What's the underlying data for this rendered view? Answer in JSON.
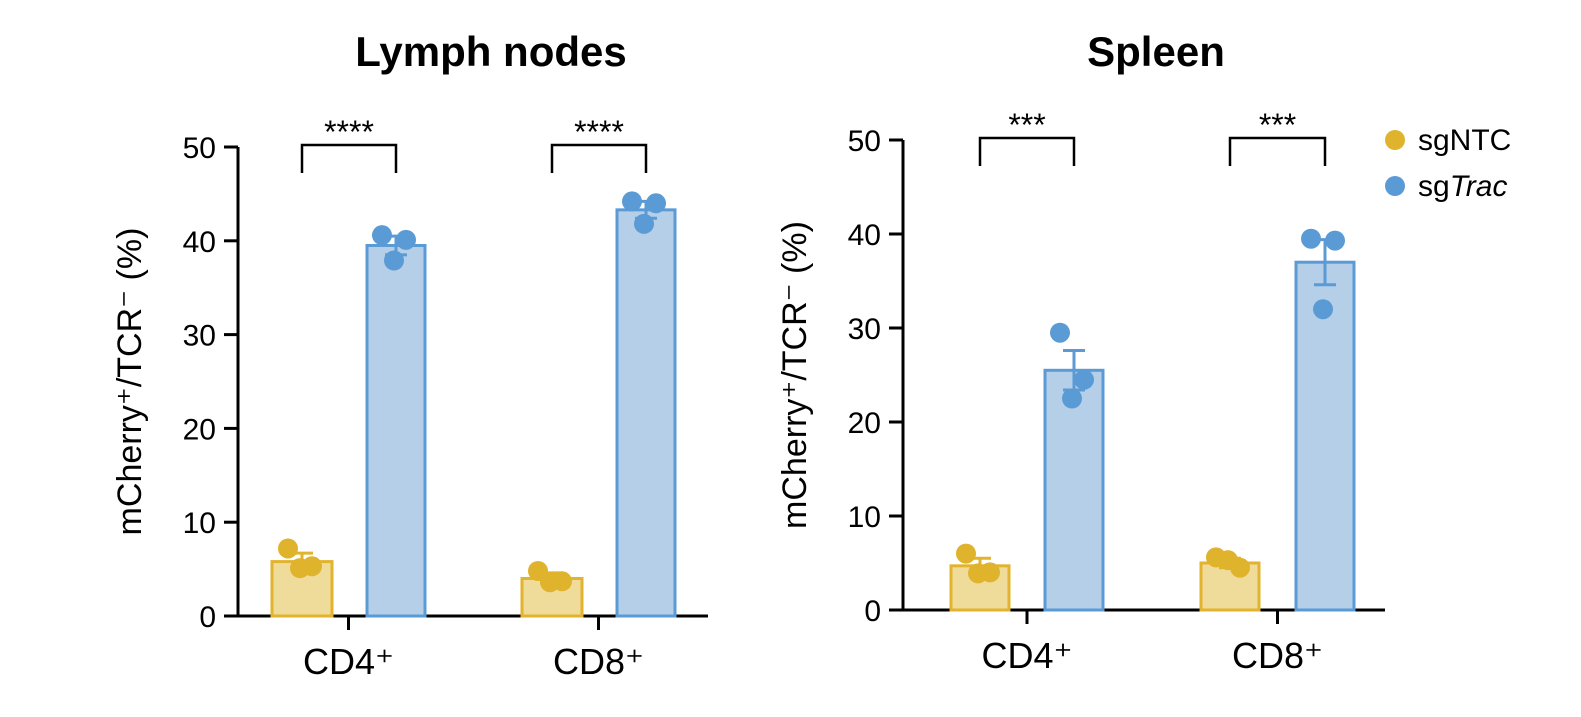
{
  "chart_data": [
    {
      "type": "bar",
      "title": "Lymph nodes",
      "ylabel": "mCherry⁺/TCR⁻ (%)",
      "ylim": [
        0,
        50
      ],
      "yticks": [
        "0",
        "10",
        "20",
        "30",
        "40",
        "50"
      ],
      "categories": [
        "CD4⁺",
        "CD8⁺"
      ],
      "series": [
        {
          "name": "sgNTC",
          "values": [
            5.8,
            4.0
          ],
          "sem": [
            0.9,
            0.6
          ],
          "points": [
            [
              7.2,
              5.3,
              5.1
            ],
            [
              4.8,
              3.7,
              3.6
            ]
          ]
        },
        {
          "name": "sgTrac",
          "values": [
            39.5,
            43.3
          ],
          "sem": [
            1.0,
            0.9
          ],
          "points": [
            [
              40.6,
              40.1,
              37.9
            ],
            [
              44.2,
              44.0,
              41.8
            ]
          ]
        }
      ],
      "significance": [
        "****",
        "****"
      ]
    },
    {
      "type": "bar",
      "title": "Spleen",
      "ylabel": "mCherry⁺/TCR⁻ (%)",
      "ylim": [
        0,
        50
      ],
      "yticks": [
        "0",
        "10",
        "20",
        "30",
        "40",
        "50"
      ],
      "categories": [
        "CD4⁺",
        "CD8⁺"
      ],
      "series": [
        {
          "name": "sgNTC",
          "values": [
            4.7,
            5.0
          ],
          "sem": [
            0.8,
            0.5
          ],
          "points": [
            [
              6.0,
              4.0,
              3.9
            ],
            [
              5.6,
              4.5,
              5.3
            ]
          ]
        },
        {
          "name": "sgTrac",
          "values": [
            25.5,
            37.0
          ],
          "sem": [
            2.1,
            2.4
          ],
          "points": [
            [
              29.5,
              24.5,
              22.5
            ],
            [
              39.5,
              39.3,
              32.0
            ]
          ]
        }
      ],
      "significance": [
        "***",
        "***"
      ]
    }
  ],
  "legend": {
    "placement": "top-right",
    "items": [
      {
        "prefix": "sgNTC",
        "italic": ""
      },
      {
        "prefix": "sg",
        "italic": "Trac"
      }
    ]
  },
  "colors": {
    "sgNTC_fill": "#f0dc9a",
    "sgNTC_edge": "#e2b32f",
    "sgNTC_dot": "#e0b32c",
    "sgTrac_fill": "#b5cfe9",
    "sgTrac_edge": "#5b9bd5",
    "sgTrac_dot": "#5b9bd5"
  }
}
